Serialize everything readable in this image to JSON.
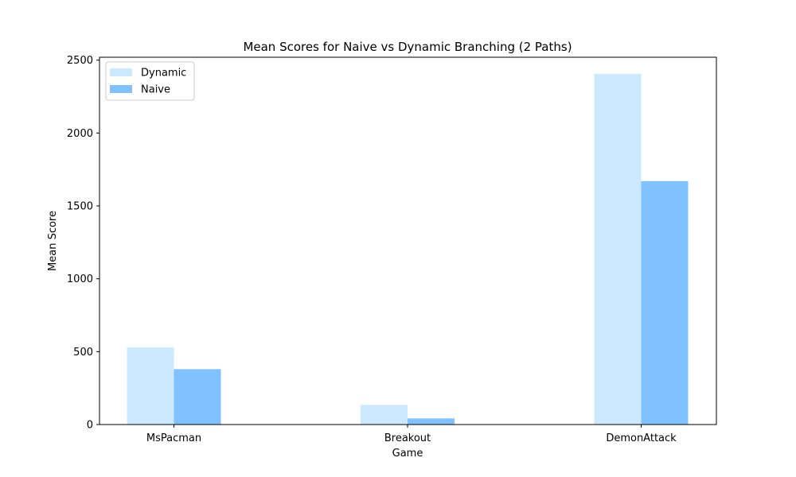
{
  "chart_data": {
    "type": "bar",
    "title": "Mean Scores for Naive vs Dynamic Branching (2 Paths)",
    "xlabel": "Game",
    "ylabel": "Mean Score",
    "categories": [
      "MsPacman",
      "Breakout",
      "DemonAttack"
    ],
    "series": [
      {
        "name": "Dynamic",
        "values": [
          530,
          135,
          2405
        ],
        "color": "#cce9ff"
      },
      {
        "name": "Naive",
        "values": [
          380,
          42,
          1670
        ],
        "color": "#80c1ff"
      }
    ],
    "ylim": [
      0,
      2520
    ],
    "yticks": [
      0,
      500,
      1000,
      1500,
      2000,
      2500
    ],
    "grid": false,
    "legend_position": "top-left"
  }
}
